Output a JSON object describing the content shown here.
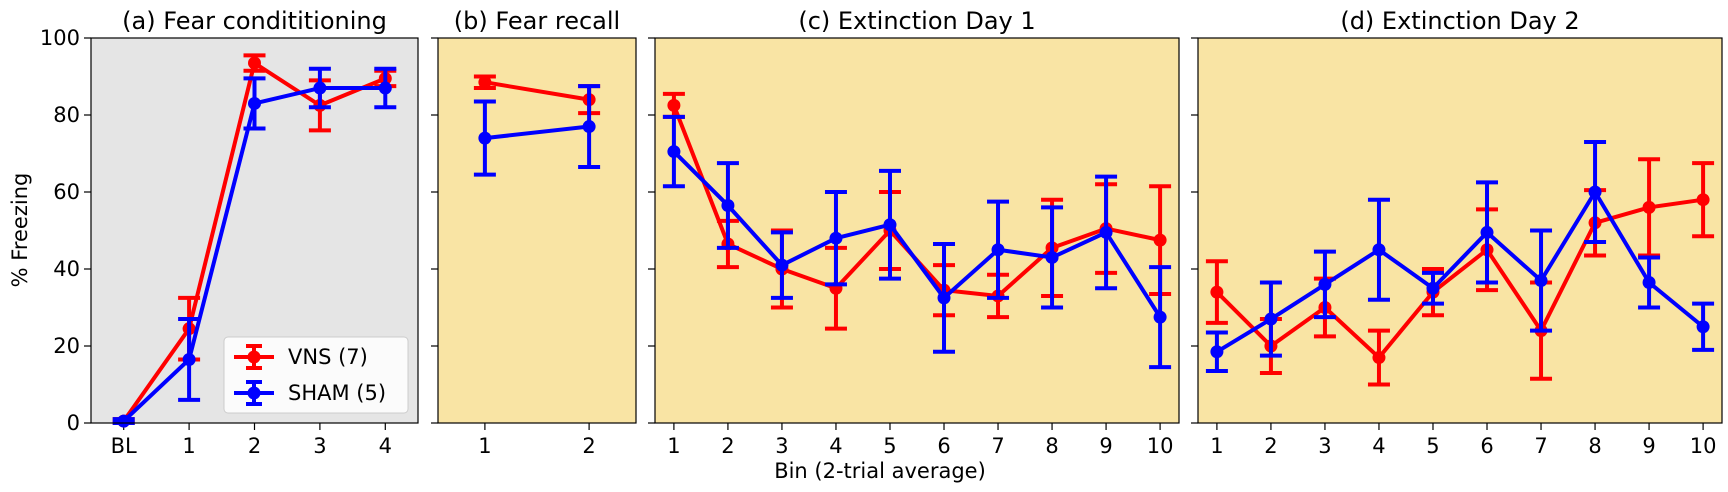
{
  "chart_data": {
    "type": "line",
    "ylabel": "% Freezing",
    "xlabel": "Bin (2-trial average)",
    "ylim": [
      0,
      100
    ],
    "yticks": [
      0,
      20,
      40,
      60,
      80,
      100
    ],
    "legend": {
      "placement": "lower-right of panel (a)",
      "entries": [
        "VNS (7)",
        "SHAM (5)"
      ]
    },
    "colors": {
      "VNS": "#ff0000",
      "SHAM": "#0000ff",
      "panel_a_bg": "#e5e5e5",
      "panel_bg": "#f9e4a4"
    },
    "panels": [
      {
        "title": "(a) Fear condititioning",
        "categories": [
          "BL",
          "1",
          "2",
          "3",
          "4"
        ],
        "series": [
          {
            "name": "VNS (7)",
            "color": "#ff0000",
            "values": [
              0.5,
              24.5,
              93.5,
              82.5,
              89.5
            ],
            "err": [
              0.5,
              8,
              2,
              6.5,
              2
            ]
          },
          {
            "name": "SHAM (5)",
            "color": "#0000ff",
            "values": [
              0.5,
              16.5,
              83,
              87,
              87
            ],
            "err": [
              0.5,
              10.5,
              6.5,
              5,
              5
            ]
          }
        ]
      },
      {
        "title": "(b) Fear recall",
        "categories": [
          "1",
          "2"
        ],
        "series": [
          {
            "name": "VNS (7)",
            "color": "#ff0000",
            "values": [
              88.5,
              84
            ],
            "err": [
              1.5,
              3.5
            ]
          },
          {
            "name": "SHAM (5)",
            "color": "#0000ff",
            "values": [
              74,
              77
            ],
            "err": [
              9.5,
              10.5
            ]
          }
        ]
      },
      {
        "title": "(c) Extinction Day 1",
        "categories": [
          "1",
          "2",
          "3",
          "4",
          "5",
          "6",
          "7",
          "8",
          "9",
          "10"
        ],
        "series": [
          {
            "name": "VNS (7)",
            "color": "#ff0000",
            "values": [
              82.5,
              46.5,
              40,
              35,
              50,
              34.5,
              33,
              45.5,
              50.5,
              47.5
            ],
            "err": [
              3,
              6,
              10,
              10.5,
              10,
              6.5,
              5.5,
              12.5,
              11.5,
              14
            ]
          },
          {
            "name": "SHAM (5)",
            "color": "#0000ff",
            "values": [
              70.5,
              56.5,
              41,
              48,
              51.5,
              32.5,
              45,
              43,
              49.5,
              27.5
            ],
            "err": [
              9,
              11,
              8.5,
              12,
              14,
              14,
              12.5,
              13,
              14.5,
              13
            ]
          }
        ]
      },
      {
        "title": "(d) Extinction Day 2",
        "categories": [
          "1",
          "2",
          "3",
          "4",
          "5",
          "6",
          "7",
          "8",
          "9",
          "10"
        ],
        "series": [
          {
            "name": "VNS (7)",
            "color": "#ff0000",
            "values": [
              34,
              20,
              30,
              17,
              34,
              45,
              24,
              52,
              56,
              58
            ],
            "err": [
              8,
              7,
              7.5,
              7,
              6,
              10.5,
              12.5,
              8.5,
              12.5,
              9.5
            ]
          },
          {
            "name": "SHAM (5)",
            "color": "#0000ff",
            "values": [
              18.5,
              27,
              36,
              45,
              35,
              49.5,
              37,
              60,
              36.5,
              25
            ],
            "err": [
              5,
              9.5,
              8.5,
              13,
              4,
              13,
              13,
              13,
              6.5,
              6
            ]
          }
        ]
      }
    ]
  }
}
